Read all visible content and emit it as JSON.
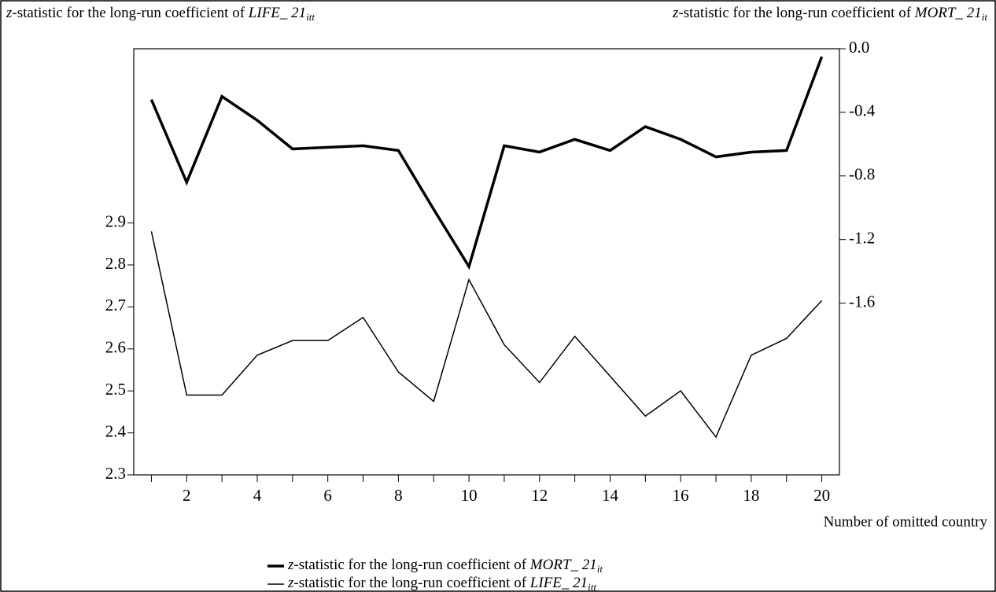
{
  "chart_data": {
    "type": "line",
    "x_label": "Number of omitted country",
    "x": [
      1,
      2,
      3,
      4,
      5,
      6,
      7,
      8,
      9,
      10,
      11,
      12,
      13,
      14,
      15,
      16,
      17,
      18,
      19,
      20
    ],
    "xlim": [
      0.5,
      20.5
    ],
    "xticks": [
      2,
      4,
      6,
      8,
      10,
      12,
      14,
      16,
      18,
      20
    ],
    "xminor": [
      1,
      3,
      5,
      7,
      9,
      11,
      13,
      15,
      17,
      19
    ],
    "ylim": [
      2.3,
      3.315
    ],
    "yticks": [
      2.3,
      2.4,
      2.5,
      2.6,
      2.7,
      2.8,
      2.9
    ],
    "y2lim": [
      -2.68,
      0
    ],
    "y2ticks": [
      {
        "value": 0,
        "label": "0.0"
      },
      -0.4,
      -0.8,
      -1.2,
      -1.6
    ],
    "series": [
      {
        "name": "z-statistic for the long-run coefficient of MORT_ 21it",
        "color": "#000000",
        "width": 3.5,
        "axis": "y2",
        "values": [
          -0.32,
          -0.84,
          -0.3,
          -0.45,
          -0.63,
          -0.62,
          -0.61,
          -0.64,
          -1.01,
          -1.37,
          -0.61,
          -0.65,
          -0.57,
          -0.64,
          -0.49,
          -0.57,
          -0.68,
          -0.65,
          -0.64,
          -0.05
        ]
      },
      {
        "name": "z-statistic for the long-run coefficient of LIFE_ 21itt",
        "color": "#000000",
        "width": 1.5,
        "axis": "y",
        "values": [
          2.88,
          2.49,
          2.49,
          2.585,
          2.62,
          2.62,
          2.675,
          2.545,
          2.475,
          2.765,
          2.61,
          2.52,
          2.63,
          2.535,
          2.44,
          2.5,
          2.39,
          2.585,
          2.625,
          2.715
        ]
      }
    ]
  }
}
